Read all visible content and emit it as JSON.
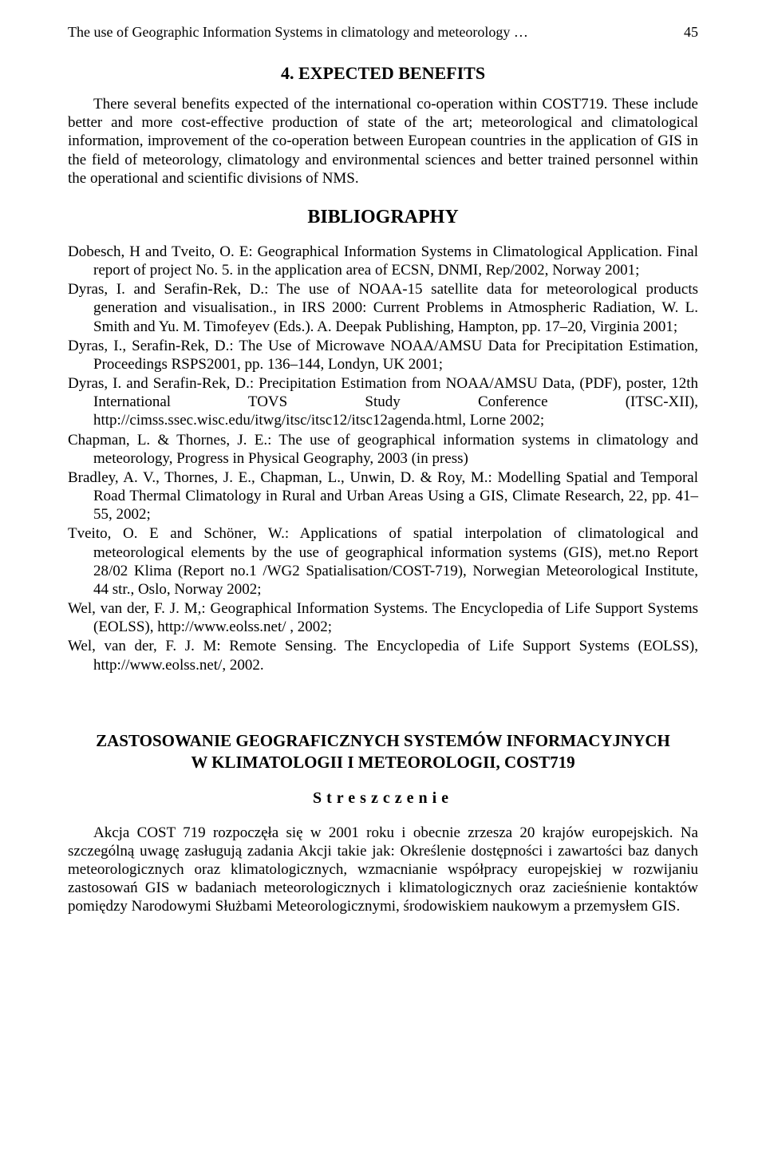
{
  "header": {
    "running_title": "The use of Geographic Information Systems in climatology and meteorology …",
    "page_number": "45"
  },
  "section": {
    "heading": "4. EXPECTED BENEFITS",
    "paragraph": "There several benefits expected of the international co-operation within COST719. These include better and more cost-effective production of state of the art; meteorological and climatological information, improvement of the co-operation between European countries in the application of GIS in the field of meteorology, climatology and environmental sciences and better trained personnel within the operational and scientific divisions of NMS."
  },
  "bibliography": {
    "heading": "BIBLIOGRAPHY",
    "entries": [
      "Dobesch, H and Tveito, O. E: Geographical Information Systems in Climatological Application. Final report of project No. 5. in the application area of ECSN, DNMI, Rep/2002, Norway 2001;",
      "Dyras, I. and Serafin-Rek, D.: The use of NOAA-15 satellite data for meteorological products generation and visualisation., in IRS 2000: Current Problems in Atmospheric Radiation, W. L. Smith and Yu. M. Timofeyev (Eds.). A. Deepak Publishing, Hampton, pp. 17–20, Virginia 2001;",
      "Dyras, I., Serafin-Rek, D.: The Use of Microwave NOAA/AMSU Data for Precipitation Estimation, Proceedings RSPS2001, pp. 136–144, Londyn, UK 2001;",
      "Dyras, I. and Serafin-Rek, D.: Precipitation Estimation from NOAA/AMSU Data, (PDF), poster, 12th International TOVS Study Conference (ITSC-XII), http://cimss.ssec.wisc.edu/itwg/itsc/itsc12/itsc12agenda.html, Lorne 2002;",
      "Chapman, L. & Thornes, J. E.: The use of geographical information systems in climatology and meteorology, Progress in Physical Geography, 2003 (in press)",
      "Bradley, A. V., Thornes, J. E., Chapman, L., Unwin, D. & Roy, M.: Modelling Spatial and Temporal Road Thermal Climatology in Rural and Urban Areas Using a GIS, Climate Research, 22, pp. 41–55, 2002;",
      "Tveito, O. E and Schöner, W.: Applications of spatial interpolation of climatological and meteorological elements by the use of geographical information systems (GIS), met.no Report 28/02 Klima (Report no.1 /WG2 Spatialisation/COST-719), Norwegian Meteorological Institute, 44 str., Oslo, Norway 2002;",
      "Wel, van der, F. J. M,: Geographical Information Systems. The Encyclopedia of Life Support Systems (EOLSS), http://www.eolss.net/ , 2002;",
      "Wel, van der, F. J. M: Remote Sensing. The Encyclopedia of Life Support Systems (EOLSS), http://www.eolss.net/, 2002."
    ]
  },
  "polish": {
    "title_line1": "ZASTOSOWANIE GEOGRAFICZNYCH SYSTEMÓW INFORMACYJNYCH",
    "title_line2": "W KLIMATOLOGII I METEOROLOGII, COST719",
    "subheading": "Streszczenie",
    "paragraph": "Akcja COST 719 rozpoczęła się w 2001 roku i obecnie zrzesza 20 krajów europejskich. Na szczególną uwagę zasługują zadania Akcji takie jak: Określenie dostępności i zawartości baz danych meteorologicznych oraz klimatologicznych, wzmacnianie współpracy europejskiej w rozwijaniu zastosowań GIS w badaniach meteorologicznych i klimatologicznych oraz zacieśnienie kontaktów pomiędzy Narodowymi Służbami Meteorologicznymi, środowiskiem naukowym a przemysłem GIS."
  }
}
